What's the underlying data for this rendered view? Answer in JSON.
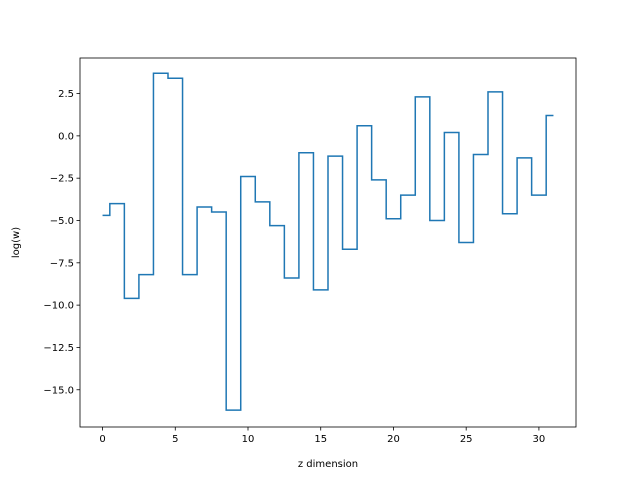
{
  "chart_data": {
    "type": "line",
    "style": "step-mid",
    "title": "",
    "xlabel": "z dimension",
    "ylabel": "log(w)",
    "xlim": [
      -1.55,
      32.55
    ],
    "ylim": [
      -17.2,
      4.6
    ],
    "xticks": [
      0,
      5,
      10,
      15,
      20,
      25,
      30
    ],
    "xtick_labels": [
      "0",
      "5",
      "10",
      "15",
      "20",
      "25",
      "30"
    ],
    "yticks": [
      2.5,
      0.0,
      -2.5,
      -5.0,
      -7.5,
      -10.0,
      -12.5,
      -15.0
    ],
    "ytick_labels": [
      "2.5",
      "0.0",
      "−2.5",
      "−5.0",
      "−7.5",
      "−10.0",
      "−12.5",
      "−15.0"
    ],
    "grid": false,
    "series": [
      {
        "color": "#1f77b4",
        "x": [
          0,
          1,
          2,
          3,
          4,
          5,
          6,
          7,
          8,
          9,
          10,
          11,
          12,
          13,
          14,
          15,
          16,
          17,
          18,
          19,
          20,
          21,
          22,
          23,
          24,
          25,
          26,
          27,
          28,
          29,
          30,
          31
        ],
        "values": [
          -4.7,
          -4.0,
          -9.6,
          -8.2,
          3.7,
          3.4,
          -8.2,
          -4.2,
          -4.5,
          -16.2,
          -2.4,
          -3.9,
          -5.3,
          -8.4,
          -1.0,
          -9.1,
          -1.2,
          -6.7,
          0.6,
          -2.6,
          -4.9,
          -3.5,
          2.3,
          -5.0,
          0.2,
          -6.3,
          -1.1,
          2.6,
          -4.6,
          -1.3,
          -3.5,
          1.2
        ]
      }
    ]
  }
}
